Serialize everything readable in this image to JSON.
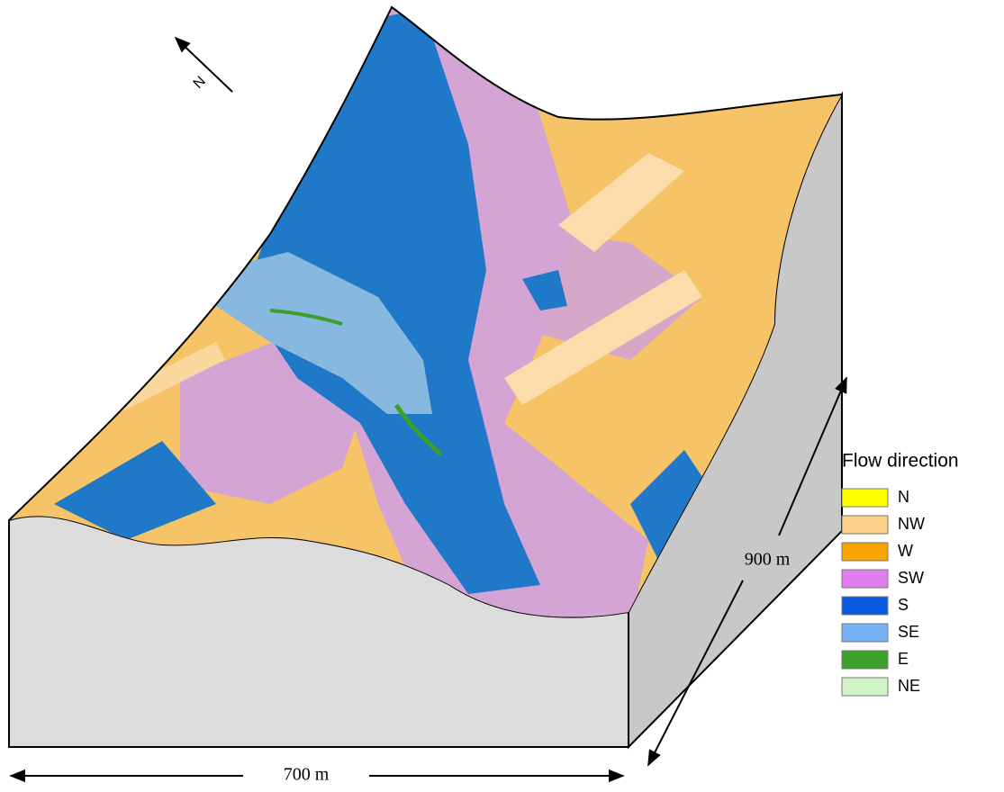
{
  "north_label": "N",
  "legend": {
    "title": "Flow direction",
    "items": [
      {
        "label": "N",
        "color": "#ffff00"
      },
      {
        "label": "NW",
        "color": "#fcd28a"
      },
      {
        "label": "W",
        "color": "#f9a500"
      },
      {
        "label": "SW",
        "color": "#e07ef0"
      },
      {
        "label": "S",
        "color": "#0a5ae0"
      },
      {
        "label": "SE",
        "color": "#78b4f5"
      },
      {
        "label": "E",
        "color": "#3ca02a"
      },
      {
        "label": "NE",
        "color": "#d2f5c8"
      }
    ]
  },
  "dimensions": {
    "width_label": "700 m",
    "depth_label": "900 m"
  }
}
